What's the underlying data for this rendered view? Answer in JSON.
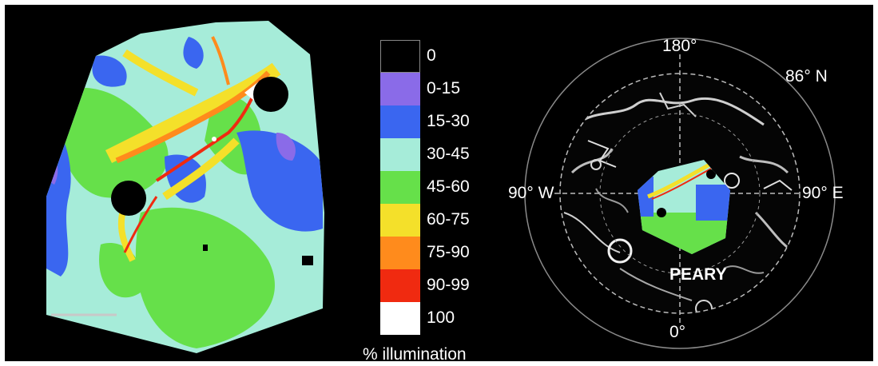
{
  "legend": {
    "caption": "% illumination",
    "ranges": [
      {
        "label": "0",
        "color": "#000000"
      },
      {
        "label": "0-15",
        "color": "#8a6be8"
      },
      {
        "label": "15-30",
        "color": "#3a66f0"
      },
      {
        "label": "30-45",
        "color": "#a6ecd9"
      },
      {
        "label": "45-60",
        "color": "#66e04a"
      },
      {
        "label": "60-75",
        "color": "#f4e02a"
      },
      {
        "label": "75-90",
        "color": "#ff8b1c"
      },
      {
        "label": "90-99",
        "color": "#f02a10"
      },
      {
        "label": "100",
        "color": "#ffffff"
      }
    ]
  },
  "polar_map": {
    "labels": {
      "top": "180°",
      "top_right": "86° N",
      "left": "90° W",
      "right": "90° E",
      "bottom": "0°",
      "crater": "PEARY"
    }
  }
}
